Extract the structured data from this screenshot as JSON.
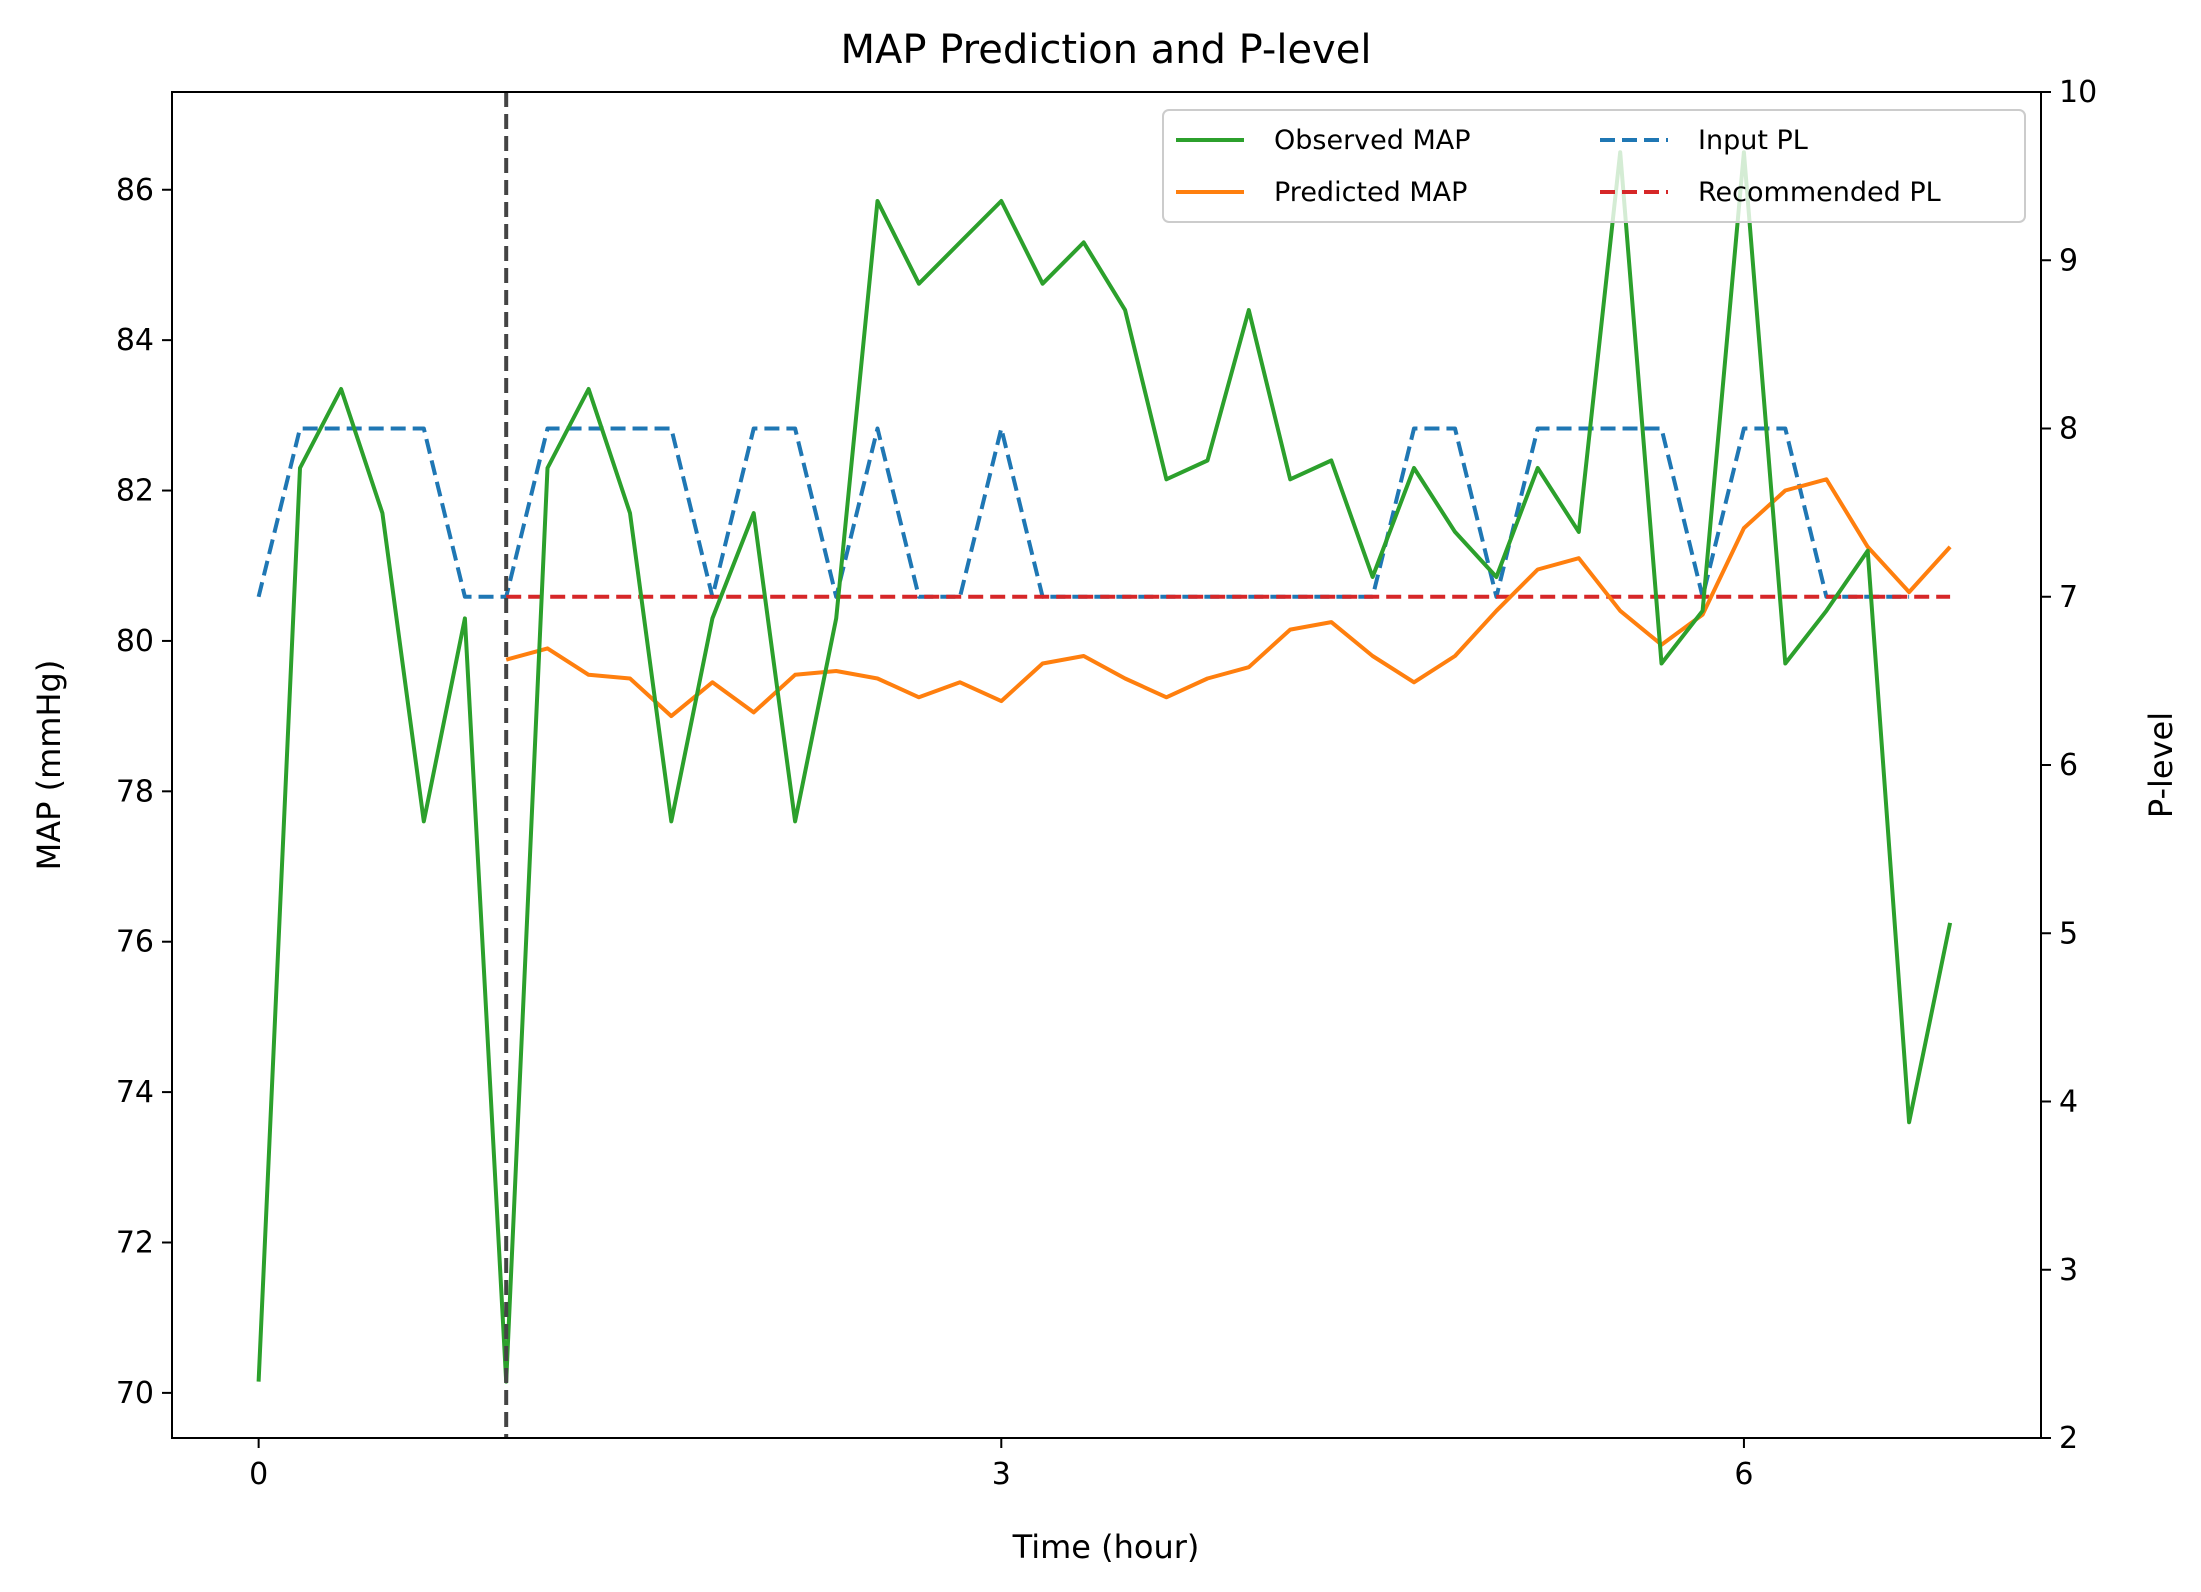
{
  "chart_data": {
    "type": "line",
    "title": "MAP Prediction and P-level",
    "xlabel": "Time (hour)",
    "ylabel": "MAP (mmHg)",
    "y2label": "P-level",
    "xlim": [
      -0.35,
      7.2
    ],
    "ylim": [
      69.4,
      87.3
    ],
    "y2lim": [
      2,
      10
    ],
    "xticks": [
      0,
      3,
      6
    ],
    "yticks": [
      70,
      72,
      74,
      76,
      78,
      80,
      82,
      84,
      86
    ],
    "y2ticks": [
      2,
      3,
      4,
      5,
      6,
      7,
      8,
      9,
      10
    ],
    "vline_x": 1.0,
    "grid": false,
    "legend_position": "upper right",
    "series": [
      {
        "name": "Observed MAP",
        "axis": "left",
        "color": "#2ca02c",
        "style": "solid",
        "x": [
          0,
          0.167,
          0.333,
          0.5,
          0.667,
          0.833,
          1.0,
          1.167,
          1.333,
          1.5,
          1.667,
          1.833,
          2.0,
          2.167,
          2.333,
          2.5,
          2.667,
          2.833,
          3.0,
          3.167,
          3.333,
          3.5,
          3.667,
          3.833,
          4.0,
          4.167,
          4.333,
          4.5,
          4.667,
          4.833,
          5.0,
          5.167,
          5.333,
          5.5,
          5.667,
          5.833,
          6.0,
          6.167,
          6.333,
          6.5,
          6.667,
          6.833
        ],
        "y": [
          70.15,
          82.3,
          83.35,
          81.7,
          77.6,
          80.3,
          70.15,
          82.3,
          83.35,
          81.7,
          77.6,
          80.3,
          81.7,
          77.6,
          80.3,
          85.85,
          84.75,
          85.3,
          85.85,
          84.75,
          85.3,
          84.4,
          82.15,
          82.4,
          84.4,
          82.15,
          82.4,
          80.85,
          82.3,
          81.45,
          80.85,
          82.3,
          81.45,
          86.5,
          79.7,
          80.4,
          86.5,
          79.7,
          80.4,
          81.2,
          73.6,
          76.25
        ]
      },
      {
        "name": "Predicted MAP",
        "axis": "left",
        "color": "#ff7f0e",
        "style": "solid",
        "x": [
          1.0,
          1.167,
          1.333,
          1.5,
          1.667,
          1.833,
          2.0,
          2.167,
          2.333,
          2.5,
          2.667,
          2.833,
          3.0,
          3.167,
          3.333,
          3.5,
          3.667,
          3.833,
          4.0,
          4.167,
          4.333,
          4.5,
          4.667,
          4.833,
          5.0,
          5.167,
          5.333,
          5.5,
          5.667,
          5.833,
          6.0,
          6.167,
          6.333,
          6.5,
          6.667,
          6.833
        ],
        "y": [
          79.75,
          79.9,
          79.55,
          79.5,
          79.0,
          79.45,
          79.05,
          79.55,
          79.6,
          79.5,
          79.25,
          79.45,
          79.2,
          79.7,
          79.8,
          79.5,
          79.25,
          79.5,
          79.65,
          80.15,
          80.25,
          79.8,
          79.45,
          79.8,
          80.4,
          80.95,
          81.1,
          80.4,
          79.95,
          80.35,
          81.5,
          82.0,
          82.15,
          81.25,
          80.65,
          81.25
        ]
      },
      {
        "name": "Input PL",
        "axis": "right",
        "color": "#1f77b4",
        "style": "dashed",
        "x": [
          0,
          0.167,
          0.333,
          0.5,
          0.667,
          0.833,
          1.0,
          1.167,
          1.333,
          1.5,
          1.667,
          1.833,
          2.0,
          2.167,
          2.333,
          2.5,
          2.667,
          2.833,
          3.0,
          3.167,
          3.333,
          3.5,
          3.667,
          3.833,
          4.0,
          4.167,
          4.333,
          4.5,
          4.667,
          4.833,
          5.0,
          5.167,
          5.333,
          5.5,
          5.667,
          5.833,
          6.0,
          6.167,
          6.333,
          6.5,
          6.667
        ],
        "y": [
          7,
          8,
          8,
          8,
          8,
          7,
          7,
          8,
          8,
          8,
          8,
          7,
          8,
          8,
          7,
          8,
          7,
          7,
          8,
          7,
          7,
          7,
          7,
          7,
          7,
          7,
          7,
          7,
          8,
          8,
          7,
          8,
          8,
          8,
          8,
          7,
          8,
          8,
          7,
          7,
          7
        ]
      },
      {
        "name": "Recommended PL",
        "axis": "right",
        "color": "#d62728",
        "style": "dashed",
        "x": [
          1.0,
          6.833
        ],
        "y": [
          7,
          7
        ]
      }
    ]
  }
}
